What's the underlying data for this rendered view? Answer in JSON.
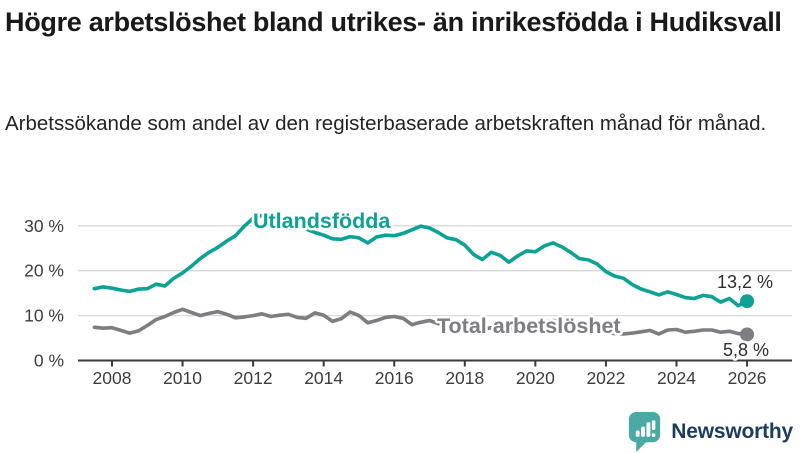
{
  "header": {
    "title": "Högre arbetslöshet bland utrikes- än inrikesfödda i Hudiksvall",
    "subtitle": "Arbetssökande som andel av den registerbaserade arbetskraften månad för månad."
  },
  "chart_data": {
    "type": "line",
    "title": "Högre arbetslöshet bland utrikes- än inrikesfödda i Hudiksvall",
    "subtitle": "Arbetssökande som andel av den registerbaserade arbetskraften månad för månad.",
    "unit": "%",
    "grid": "horizontal",
    "legend": "inline-labels",
    "ylim": [
      0,
      34
    ],
    "yticks": [
      {
        "value": 0,
        "label": "0 %"
      },
      {
        "value": 10,
        "label": "10 %"
      },
      {
        "value": 20,
        "label": "20 %"
      },
      {
        "value": 30,
        "label": "30 %"
      }
    ],
    "xticks": [
      {
        "value": 2008,
        "label": "2008"
      },
      {
        "value": 2010,
        "label": "2010"
      },
      {
        "value": 2012,
        "label": "2012"
      },
      {
        "value": 2014,
        "label": "2014"
      },
      {
        "value": 2016,
        "label": "2016"
      },
      {
        "value": 2018,
        "label": "2018"
      },
      {
        "value": 2020,
        "label": "2020"
      },
      {
        "value": 2022,
        "label": "2022"
      },
      {
        "value": 2024,
        "label": "2024"
      },
      {
        "value": 2026,
        "label": "2026"
      }
    ],
    "x": [
      2007.5,
      2007.75,
      2008,
      2008.25,
      2008.5,
      2008.75,
      2009,
      2009.25,
      2009.5,
      2009.75,
      2010,
      2010.25,
      2010.5,
      2010.75,
      2011,
      2011.25,
      2011.5,
      2011.75,
      2012,
      2012.25,
      2012.5,
      2012.75,
      2013,
      2013.25,
      2013.5,
      2013.75,
      2014,
      2014.25,
      2014.5,
      2014.75,
      2015,
      2015.25,
      2015.5,
      2015.75,
      2016,
      2016.25,
      2016.5,
      2016.75,
      2017,
      2017.25,
      2017.5,
      2017.75,
      2018,
      2018.25,
      2018.5,
      2018.75,
      2019,
      2019.25,
      2019.5,
      2019.75,
      2020,
      2020.25,
      2020.5,
      2020.75,
      2021,
      2021.25,
      2021.5,
      2021.75,
      2022,
      2022.25,
      2022.5,
      2022.75,
      2023,
      2023.25,
      2023.5,
      2023.75,
      2024,
      2024.25,
      2024.5,
      2024.75,
      2025,
      2025.25,
      2025.5,
      2025.75,
      2026
    ],
    "series": [
      {
        "name": "Utlandsfödda",
        "color": "#0ca295",
        "end_value": 13.2,
        "end_label": "13,2 %",
        "values": [
          16.0,
          16.4,
          16.1,
          15.7,
          15.4,
          15.9,
          16.0,
          17.0,
          16.6,
          18.3,
          19.5,
          21.0,
          22.7,
          24.1,
          25.2,
          26.6,
          27.8,
          29.9,
          31.7,
          32.3,
          31.2,
          30.9,
          30.5,
          30.1,
          29.3,
          28.5,
          27.9,
          27.1,
          27.0,
          27.6,
          27.3,
          26.2,
          27.5,
          27.9,
          27.8,
          28.3,
          29.1,
          29.9,
          29.5,
          28.5,
          27.3,
          26.9,
          25.7,
          23.6,
          22.5,
          24.1,
          23.4,
          21.9,
          23.3,
          24.4,
          24.2,
          25.5,
          26.2,
          25.3,
          24.1,
          22.7,
          22.4,
          21.5,
          19.8,
          18.8,
          18.3,
          16.9,
          15.9,
          15.3,
          14.6,
          15.3,
          14.7,
          14.0,
          13.8,
          14.5,
          14.2,
          13.0,
          13.8,
          12.2,
          13.2
        ]
      },
      {
        "name": "Total arbetslöshet",
        "color": "#7d7d82",
        "end_value": 5.8,
        "end_label": "5,8 %",
        "values": [
          7.4,
          7.2,
          7.3,
          6.7,
          6.1,
          6.6,
          7.8,
          9.1,
          9.8,
          10.7,
          11.4,
          10.7,
          10.0,
          10.5,
          10.9,
          10.3,
          9.5,
          9.7,
          10.0,
          10.4,
          9.8,
          10.1,
          10.3,
          9.6,
          9.4,
          10.6,
          10.1,
          8.7,
          9.3,
          10.8,
          10.0,
          8.4,
          8.9,
          9.6,
          9.8,
          9.4,
          8.0,
          8.5,
          8.9,
          8.2,
          7.8,
          8.1,
          7.7,
          7.1,
          6.9,
          7.3,
          7.4,
          7.0,
          7.2,
          7.6,
          7.7,
          8.6,
          8.9,
          8.4,
          8.1,
          7.5,
          7.0,
          6.6,
          6.2,
          6.0,
          5.9,
          6.1,
          6.4,
          6.7,
          5.9,
          6.8,
          6.9,
          6.3,
          6.5,
          6.8,
          6.8,
          6.3,
          6.5,
          6.0,
          5.8
        ]
      }
    ]
  },
  "footer": {
    "brand": "Newsworthy",
    "logo_icon": "bar-chart-speech-bubble-icon",
    "brand_text_color": "#1d3c5e",
    "icon_color": "#4aa9a2"
  }
}
